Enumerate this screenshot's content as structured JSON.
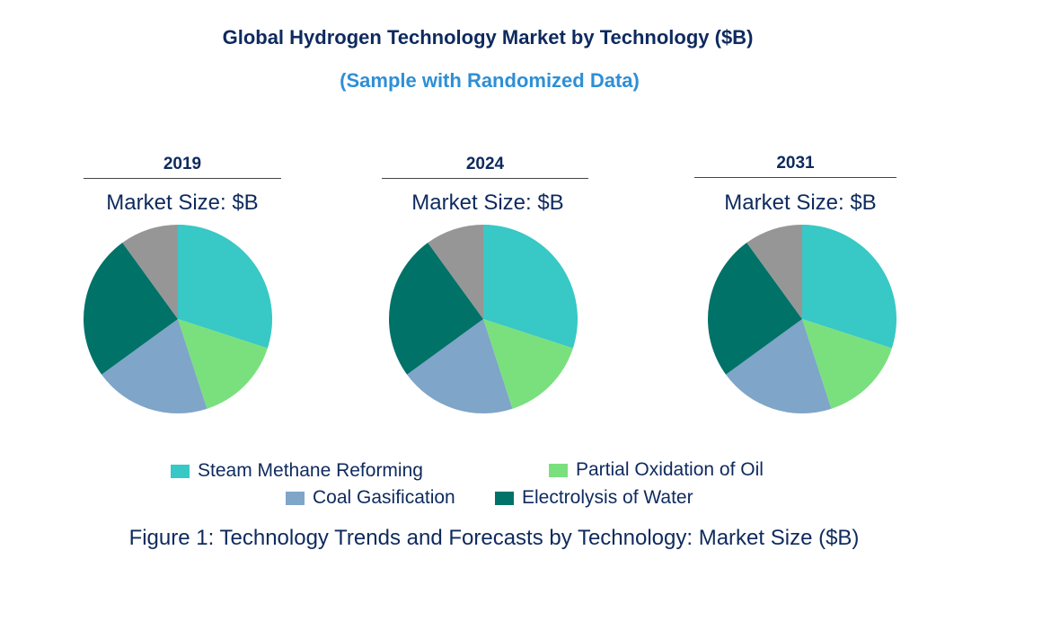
{
  "chart_data": [
    {
      "type": "pie",
      "title": "2019",
      "subtitle": "Market Size: $B",
      "categories": [
        "Steam Methane Reforming",
        "Partial Oxidation of Oil",
        "Coal Gasification",
        "Electrolysis of Water",
        ""
      ],
      "values": [
        30,
        15,
        20,
        25,
        10
      ]
    },
    {
      "type": "pie",
      "title": "2024",
      "subtitle": "Market Size: $B",
      "categories": [
        "Steam Methane Reforming",
        "Partial Oxidation of Oil",
        "Coal Gasification",
        "Electrolysis of Water",
        ""
      ],
      "values": [
        30,
        15,
        20,
        25,
        10
      ]
    },
    {
      "type": "pie",
      "title": "2031",
      "subtitle": "Market Size: $B",
      "categories": [
        "Steam Methane Reforming",
        "Partial Oxidation of Oil",
        "Coal Gasification",
        "Electrolysis of Water",
        ""
      ],
      "values": [
        30,
        15,
        20,
        25,
        10
      ]
    }
  ],
  "title": "Global Hydrogen Technology Market by Technology ($B)",
  "subtitle": "(Sample with Randomized Data)",
  "colors": [
    "#38C8C5",
    "#7AE07E",
    "#7FA5C8",
    "#007268",
    "#969696"
  ],
  "legend": [
    {
      "label": "Steam Methane Reforming",
      "color": "#38C8C5"
    },
    {
      "label": "Partial Oxidation of Oil",
      "color": "#7AE07E"
    },
    {
      "label": "Coal Gasification",
      "color": "#7FA5C8"
    },
    {
      "label": "Electrolysis of Water",
      "color": "#007268"
    }
  ],
  "caption": "Figure 1: Technology Trends and Forecasts by Technology: Market Size ($B)"
}
